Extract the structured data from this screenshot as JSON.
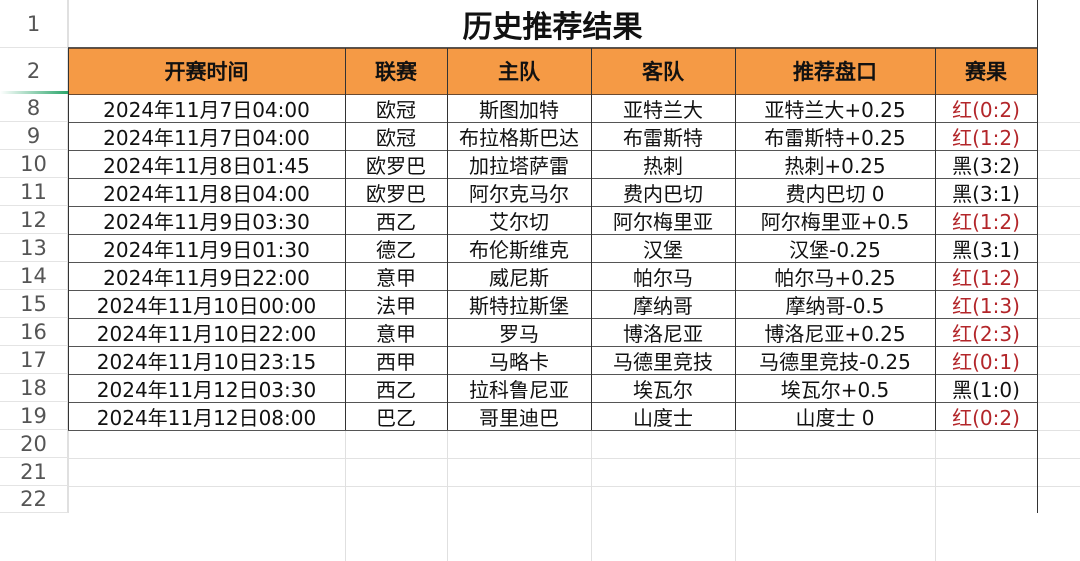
{
  "sheet": {
    "title": "历史推荐结果",
    "row_numbers": [
      "1",
      "2",
      "8",
      "9",
      "10",
      "11",
      "12",
      "13",
      "14",
      "15",
      "16",
      "17",
      "18",
      "19",
      "20",
      "21",
      "22"
    ],
    "headers": [
      "开赛时间",
      "联赛",
      "主队",
      "客队",
      "推荐盘口",
      "赛果"
    ],
    "rows": [
      [
        "2024年11月7日04:00",
        "欧冠",
        "斯图加特",
        "亚特兰大",
        "亚特兰大+0.25",
        "红(0:2)"
      ],
      [
        "2024年11月7日04:00",
        "欧冠",
        "布拉格斯巴达",
        "布雷斯特",
        "布雷斯特+0.25",
        "红(1:2)"
      ],
      [
        "2024年11月8日01:45",
        "欧罗巴",
        "加拉塔萨雷",
        "热刺",
        "热刺+0.25",
        "黑(3:2)"
      ],
      [
        "2024年11月8日04:00",
        "欧罗巴",
        "阿尔克马尔",
        "费内巴切",
        "费内巴切 0",
        "黑(3:1)"
      ],
      [
        "2024年11月9日03:30",
        "西乙",
        "艾尔切",
        "阿尔梅里亚",
        "阿尔梅里亚+0.5",
        "红(1:2)"
      ],
      [
        "2024年11月9日01:30",
        "德乙",
        "布伦斯维克",
        "汉堡",
        "汉堡-0.25",
        "黑(3:1)"
      ],
      [
        "2024年11月9日22:00",
        "意甲",
        "威尼斯",
        "帕尔马",
        "帕尔马+0.25",
        "红(1:2)"
      ],
      [
        "2024年11月10日00:00",
        "法甲",
        "斯特拉斯堡",
        "摩纳哥",
        "摩纳哥-0.5",
        "红(1:3)"
      ],
      [
        "2024年11月10日22:00",
        "意甲",
        "罗马",
        "博洛尼亚",
        "博洛尼亚+0.25",
        "红(2:3)"
      ],
      [
        "2024年11月10日23:15",
        "西甲",
        "马略卡",
        "马德里竞技",
        "马德里竞技-0.25",
        "红(0:1)"
      ],
      [
        "2024年11月12日03:30",
        "西乙",
        "拉科鲁尼亚",
        "埃瓦尔",
        "埃瓦尔+0.5",
        "黑(1:0)"
      ],
      [
        "2024年11月12日08:00",
        "巴乙",
        "哥里迪巴",
        "山度士",
        "山度士 0",
        "红(0:2)"
      ]
    ]
  },
  "colors": {
    "header_fill": "#F59A45",
    "red_result": "#b3262a",
    "black_result": "#111111"
  }
}
